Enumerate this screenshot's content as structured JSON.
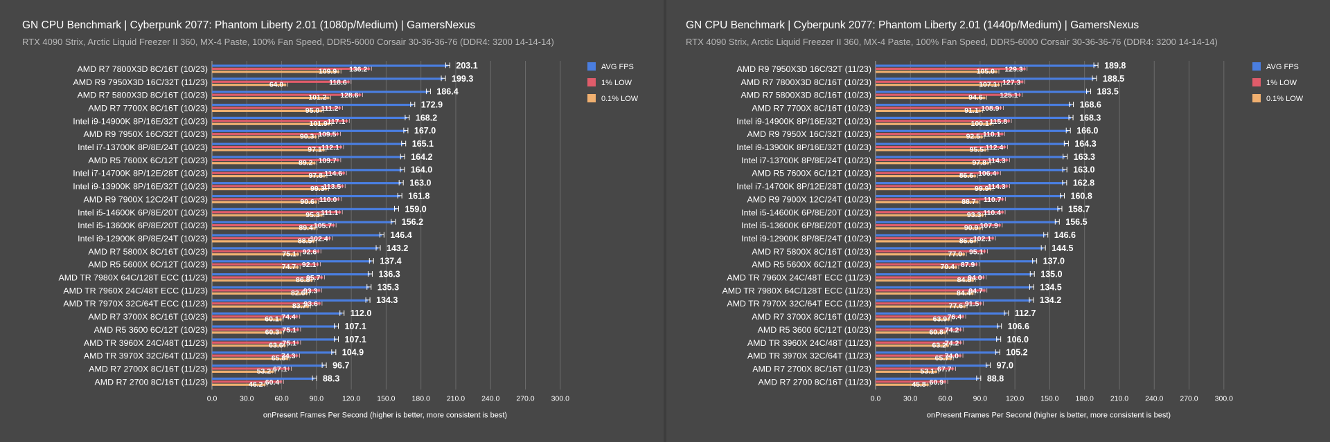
{
  "chart_data": [
    {
      "type": "bar",
      "title": "GN CPU Benchmark | Cyberpunk 2077: Phantom Liberty 2.01 (1080p/Medium) | GamersNexus",
      "subtitle": "RTX 4090 Strix, Arctic Liquid Freezer II 360, MX-4 Paste, 100% Fan Speed, DDR5-6000 Corsair 30-36-36-76 (DDR4: 3200 14-14-14)",
      "xlabel": "onPresent Frames Per Second (higher is better, more consistent is best)",
      "xlim": [
        0,
        300
      ],
      "xticks": [
        "0.0",
        "30.0",
        "60.0",
        "90.0",
        "120.0",
        "150.0",
        "180.0",
        "210.0",
        "240.0",
        "270.0",
        "300.0"
      ],
      "grid": true,
      "legend_position": "top-right",
      "categories": [
        "AMD R7 7800X3D 8C/16T (10/23)",
        "AMD R9 7950X3D 16C/32T (11/23)",
        "AMD R7 5800X3D 8C/16T (10/23)",
        "AMD R7 7700X 8C/16T (10/23)",
        "Intel i9-14900K 8P/16E/32T (10/23)",
        "AMD R9 7950X 16C/32T (10/23)",
        "Intel i7-13700K 8P/8E/24T (10/23)",
        "AMD R5 7600X 6C/12T (10/23)",
        "Intel i7-14700K 8P/12E/28T (10/23)",
        "Intel i9-13900K 8P/16E/32T (10/23)",
        "AMD R9 7900X 12C/24T (10/23)",
        "Intel i5-14600K 6P/8E/20T (10/23)",
        "Intel i5-13600K 6P/8E/20T (10/23)",
        "Intel i9-12900K 8P/8E/24T (10/23)",
        "AMD R7 5800X 8C/16T (10/23)",
        "AMD R5 5600X 6C/12T (10/23)",
        "AMD TR 7980X 64C/128T ECC (11/23)",
        "AMD TR 7960X 24C/48T ECC (11/23)",
        "AMD TR 7970X 32C/64T ECC (11/23)",
        "AMD R7 3700X 8C/16T (10/23)",
        "AMD R5 3600 6C/12T (10/23)",
        "AMD TR 3960X 24C/48T (11/23)",
        "AMD TR 3970X 32C/64T (11/23)",
        "AMD R7 2700X 8C/16T (11/23)",
        "AMD R7 2700 8C/16T (11/23)"
      ],
      "series": [
        {
          "name": "AVG FPS",
          "color": "#4a7ee0",
          "values": [
            203.1,
            199.3,
            186.4,
            172.9,
            168.2,
            167.0,
            165.1,
            164.2,
            164.0,
            163.0,
            161.8,
            159.0,
            156.2,
            146.4,
            143.2,
            137.4,
            136.3,
            135.3,
            134.3,
            112.0,
            107.1,
            107.1,
            104.9,
            96.7,
            88.3
          ]
        },
        {
          "name": "1% LOW",
          "color": "#e05c6a",
          "values": [
            136.2,
            118.6,
            128.6,
            111.2,
            117.1,
            109.5,
            112.1,
            109.7,
            114.6,
            113.5,
            110.0,
            111.1,
            105.7,
            102.4,
            92.6,
            92.1,
            95.7,
            93.3,
            93.6,
            74.4,
            75.1,
            75.1,
            74.3,
            67.1,
            60.4
          ]
        },
        {
          "name": "0.1% LOW",
          "color": "#f0b070",
          "values": [
            109.9,
            64.0,
            101.2,
            95.0,
            101.9,
            90.3,
            97.1,
            89.2,
            97.8,
            99.3,
            90.6,
            95.3,
            89.4,
            88.5,
            75.1,
            74.7,
            86.8,
            82.6,
            83.7,
            60.1,
            60.3,
            63.6,
            65.8,
            53.2,
            46.2
          ]
        }
      ]
    },
    {
      "type": "bar",
      "title": "GN CPU Benchmark | Cyberpunk 2077: Phantom Liberty 2.01 (1440p/Medium) | GamersNexus",
      "subtitle": "RTX 4090 Strix, Arctic Liquid Freezer II 360, MX-4 Paste, 100% Fan Speed, DDR5-6000 Corsair 30-36-36-76 (DDR4: 3200 14-14-14)",
      "xlabel": "onPresent Frames Per Second (higher is better, more consistent is best)",
      "xlim": [
        0,
        300
      ],
      "xticks": [
        "0.0",
        "30.0",
        "60.0",
        "90.0",
        "120.0",
        "150.0",
        "180.0",
        "210.0",
        "240.0",
        "270.0",
        "300.0"
      ],
      "grid": true,
      "legend_position": "top-right",
      "categories": [
        "AMD R9 7950X3D 16C/32T (11/23)",
        "AMD R7 7800X3D 8C/16T (10/23)",
        "AMD R7 5800X3D 8C/16T (10/23)",
        "AMD R7 7700X 8C/16T (10/23)",
        "Intel i9-14900K 8P/16E/32T (10/23)",
        "AMD R9 7950X 16C/32T (10/23)",
        "Intel i9-13900K 8P/16E/32T (10/23)",
        "Intel i7-13700K 8P/8E/24T (10/23)",
        "AMD R5 7600X 6C/12T (10/23)",
        "Intel i7-14700K 8P/12E/28T (10/23)",
        "AMD R9 7900X 12C/24T (10/23)",
        "Intel i5-14600K 6P/8E/20T (10/23)",
        "Intel i5-13600K 6P/8E/20T (10/23)",
        "Intel i9-12900K 8P/8E/24T (10/23)",
        "AMD R7 5800X 8C/16T (10/23)",
        "AMD R5 5600X 6C/12T (10/23)",
        "AMD TR 7960X 24C/48T ECC (11/23)",
        "AMD TR 7980X 64C/128T ECC (11/23)",
        "AMD TR 7970X 32C/64T ECC (11/23)",
        "AMD R7 3700X 8C/16T (10/23)",
        "AMD R5 3600 6C/12T (10/23)",
        "AMD TR 3960X 24C/48T (11/23)",
        "AMD TR 3970X 32C/64T (11/23)",
        "AMD R7 2700X 8C/16T (11/23)",
        "AMD R7 2700 8C/16T (11/23)"
      ],
      "series": [
        {
          "name": "AVG FPS",
          "color": "#4a7ee0",
          "values": [
            189.8,
            188.5,
            183.5,
            168.6,
            168.3,
            166.0,
            164.3,
            163.3,
            163.0,
            162.8,
            160.8,
            158.7,
            156.5,
            146.6,
            144.5,
            137.0,
            135.0,
            134.5,
            134.2,
            112.7,
            106.6,
            106.0,
            105.2,
            97.0,
            88.8
          ]
        },
        {
          "name": "1% LOW",
          "color": "#e05c6a",
          "values": [
            129.3,
            127.3,
            125.1,
            108.9,
            115.8,
            110.1,
            112.4,
            114.3,
            106.4,
            114.3,
            110.7,
            110.4,
            107.9,
            102.1,
            95.1,
            87.9,
            94.0,
            94.7,
            91.5,
            76.4,
            74.2,
            74.2,
            74.0,
            67.7,
            60.9
          ]
        },
        {
          "name": "0.1% LOW",
          "color": "#f0b070",
          "values": [
            105.0,
            107.1,
            94.6,
            91.1,
            100.1,
            92.5,
            95.5,
            97.8,
            86.6,
            99.9,
            88.7,
            93.3,
            90.9,
            86.6,
            77.0,
            70.4,
            84.8,
            84.4,
            77.6,
            63.9,
            60.8,
            63.2,
            65.7,
            53.1,
            45.8
          ]
        }
      ]
    }
  ]
}
